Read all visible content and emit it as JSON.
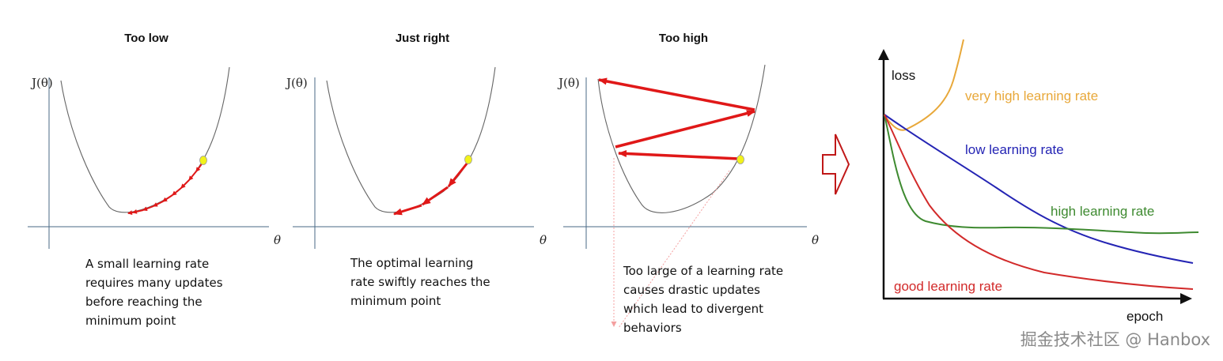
{
  "panels": [
    {
      "title": "Too low",
      "ylabel": "J(θ)",
      "xlabel": "θ",
      "caption": [
        "A small learning rate",
        "requires many updates",
        "before reaching the",
        "minimum point"
      ]
    },
    {
      "title": "Just right",
      "ylabel": "J(θ)",
      "xlabel": "θ",
      "caption": [
        "The optimal learning",
        "rate swiftly reaches the",
        "minimum point"
      ]
    },
    {
      "title": "Too high",
      "ylabel": "J(θ)",
      "xlabel": "θ",
      "caption": [
        "Too large of a learning rate",
        "causes drastic updates",
        "which lead to divergent",
        "behaviors"
      ]
    }
  ],
  "loss_chart": {
    "ylabel": "loss",
    "xlabel": "epoch",
    "series": [
      {
        "name": "very high learning rate",
        "color": "#e8a83a"
      },
      {
        "name": "low learning rate",
        "color": "#2424b4"
      },
      {
        "name": "high learning rate",
        "color": "#3e8a30"
      },
      {
        "name": "good learning rate",
        "color": "#d22a2a"
      }
    ]
  },
  "colors": {
    "arrow": "#e01818",
    "point": "#f2f21a",
    "curve": "#666666",
    "axis": "#4a6a86",
    "transition_arrow": "#c01818"
  },
  "watermark": "掘金技术社区 @ Hanbox"
}
